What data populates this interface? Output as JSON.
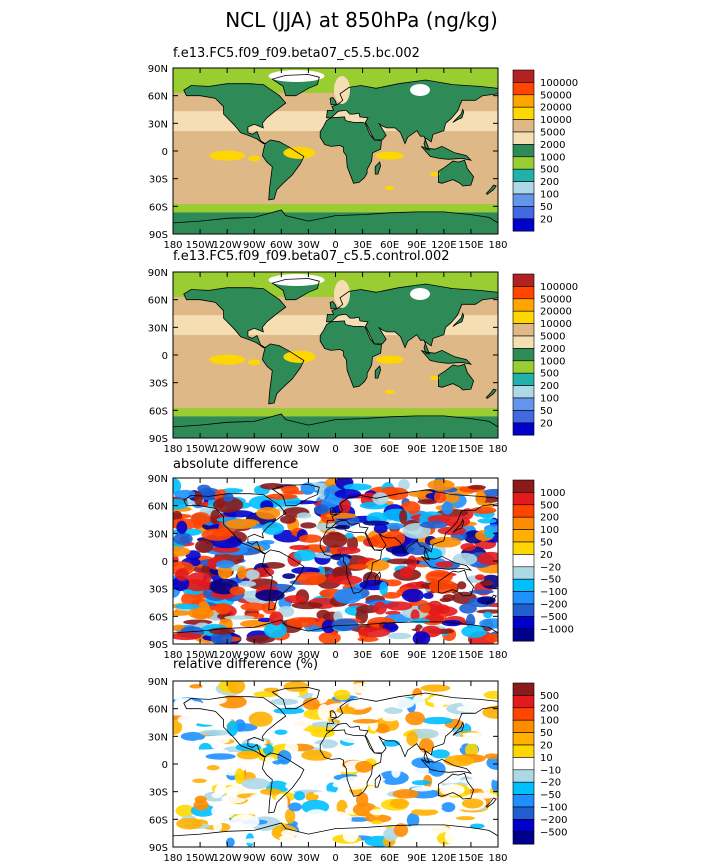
{
  "title": "NCL (JJA) at 850hPa (ng/kg)",
  "colors": {
    "land": "#2e8b57",
    "ocean_a": "#deb887",
    "ocean_b": "#f5deb3",
    "coast": "#000000"
  },
  "lat_ticks": [
    "90N",
    "60N",
    "30N",
    "0",
    "30S",
    "60S",
    "90S"
  ],
  "lon_ticks": [
    "180",
    "150W",
    "120W",
    "90W",
    "60W",
    "30W",
    "0",
    "30E",
    "60E",
    "90E",
    "120E",
    "150E",
    "180"
  ],
  "panels": [
    {
      "label": "f.e13.FC5.f09_f09.beta07_c5.5.bc.002",
      "kind": "abs",
      "levels": [
        "100000",
        "50000",
        "20000",
        "10000",
        "5000",
        "2000",
        "1000",
        "500",
        "200",
        "100",
        "50",
        "20"
      ],
      "colors": [
        "#b22222",
        "#ff4500",
        "#ffa500",
        "#ffd700",
        "#deb887",
        "#f5deb3",
        "#2e8b57",
        "#9acd32",
        "#20b2aa",
        "#add8e6",
        "#6495ed",
        "#4169e1",
        "#0000cd"
      ]
    },
    {
      "label": "f.e13.FC5.f09_f09.beta07_c5.5.control.002",
      "kind": "abs",
      "levels": [
        "100000",
        "50000",
        "20000",
        "10000",
        "5000",
        "2000",
        "1000",
        "500",
        "200",
        "100",
        "50",
        "20"
      ],
      "colors": [
        "#b22222",
        "#ff4500",
        "#ffa500",
        "#ffd700",
        "#deb887",
        "#f5deb3",
        "#2e8b57",
        "#9acd32",
        "#20b2aa",
        "#add8e6",
        "#6495ed",
        "#4169e1",
        "#0000cd"
      ]
    },
    {
      "label": "absolute difference",
      "kind": "diff",
      "levels": [
        "1000",
        "500",
        "200",
        "100",
        "50",
        "20",
        "−20",
        "−50",
        "−100",
        "−200",
        "−500",
        "−1000"
      ],
      "colors": [
        "#8b1a1a",
        "#e31a1c",
        "#ff4500",
        "#ff8c00",
        "#ffb000",
        "#ffd700",
        "#ffffff",
        "#add8e6",
        "#00bfff",
        "#1e90ff",
        "#1f5fd0",
        "#0000cd",
        "#00008b"
      ]
    },
    {
      "label": "relative difference (%)",
      "kind": "rel",
      "levels": [
        "500",
        "200",
        "100",
        "50",
        "20",
        "10",
        "−10",
        "−20",
        "−50",
        "−100",
        "−200",
        "−500"
      ],
      "colors": [
        "#8b1a1a",
        "#e31a1c",
        "#ff4500",
        "#ff8c00",
        "#ffb000",
        "#ffd700",
        "#ffffff",
        "#add8e6",
        "#00bfff",
        "#1e90ff",
        "#1f5fd0",
        "#0000cd",
        "#00008b"
      ]
    }
  ],
  "chart_data": {
    "type": "heatmap",
    "title": "NCL (JJA) at 850hPa (ng/kg)",
    "xlabel": "",
    "ylabel": "",
    "xlim": [
      -180,
      180
    ],
    "ylim": [
      -90,
      90
    ],
    "x_ticks": [
      "180",
      "150W",
      "120W",
      "90W",
      "60W",
      "30W",
      "0",
      "30E",
      "60E",
      "90E",
      "120E",
      "150E",
      "180"
    ],
    "y_ticks": [
      "90N",
      "60N",
      "30N",
      "0",
      "30S",
      "60S",
      "90S"
    ],
    "maps": [
      {
        "name": "f.e13.FC5.f09_f09.beta07_c5.5.bc.002",
        "units": "ng/kg",
        "contour_levels": [
          20,
          50,
          100,
          200,
          500,
          1000,
          2000,
          5000,
          10000,
          20000,
          50000,
          100000
        ]
      },
      {
        "name": "f.e13.FC5.f09_f09.beta07_c5.5.control.002",
        "units": "ng/kg",
        "contour_levels": [
          20,
          50,
          100,
          200,
          500,
          1000,
          2000,
          5000,
          10000,
          20000,
          50000,
          100000
        ]
      },
      {
        "name": "absolute difference",
        "units": "ng/kg",
        "contour_levels": [
          -1000,
          -500,
          -200,
          -100,
          -50,
          -20,
          20,
          50,
          100,
          200,
          500,
          1000
        ]
      },
      {
        "name": "relative difference (%)",
        "units": "%",
        "contour_levels": [
          -500,
          -200,
          -100,
          -50,
          -20,
          -10,
          10,
          20,
          50,
          100,
          200,
          500
        ]
      }
    ]
  }
}
